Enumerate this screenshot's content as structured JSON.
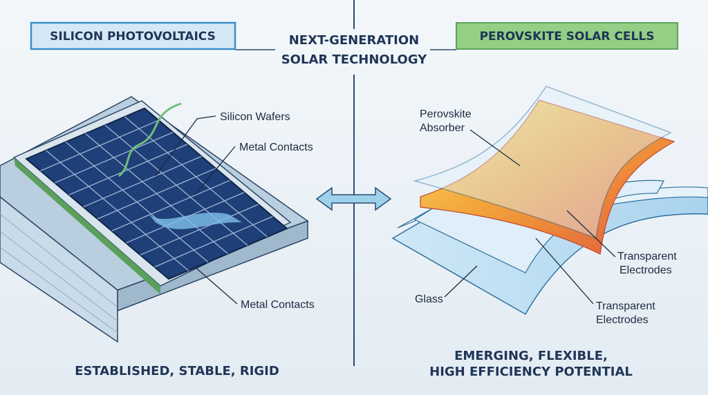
{
  "header": {
    "title_lines": [
      "NEXT-GENERATION",
      "SOLAR TECHNOLOGY"
    ]
  },
  "left": {
    "title": "SILICON PHOTOVOLTAICS",
    "labels": [
      "Silicon Wafers",
      "Metal Contacts",
      "Metal Contacts"
    ],
    "caption": "ESTABLISHED, STABLE, RIGID"
  },
  "right": {
    "title": "PEROVSKITE SOLAR CELLS",
    "absorber_lines": [
      "Perovskite",
      "Absorber"
    ],
    "electrode_upper_lines": [
      "Transparent",
      "Electrodes"
    ],
    "electrode_lower_lines": [
      "Transparent",
      "Electrodes"
    ],
    "glass": "Glass",
    "caption_lines": [
      "EMERGING, FLEXIBLE,",
      "HIGH EFFICIENCY POTENTIAL"
    ]
  }
}
